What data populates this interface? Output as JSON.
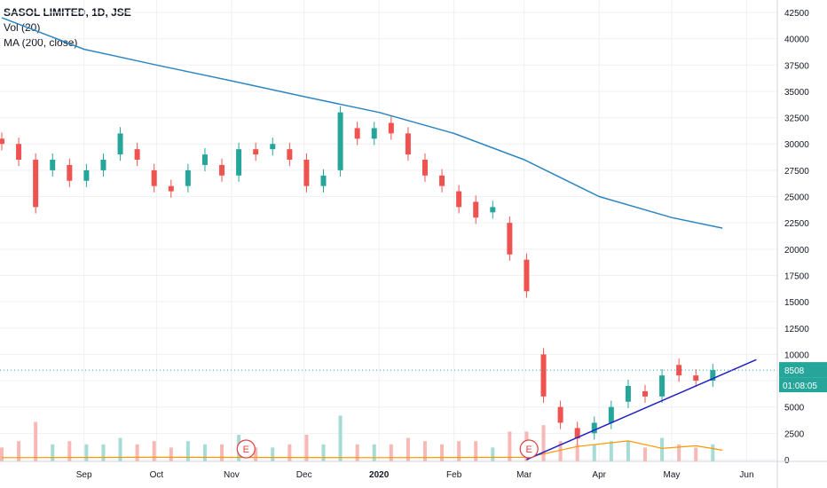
{
  "header": {
    "symbol_line": "SASOL LIMITED, 1D, JSE",
    "vol_label": "Vol (20)",
    "ma_label": "MA (200, close)"
  },
  "price_axis": {
    "ticks": [
      "42500",
      "40000",
      "37500",
      "35000",
      "32500",
      "30000",
      "27500",
      "25000",
      "22500",
      "20000",
      "17500",
      "15000",
      "12500",
      "10000",
      "7500",
      "5000",
      "2500",
      "0"
    ],
    "last_price_label": "8508",
    "countdown_label": "01:08:05"
  },
  "time_axis": {
    "labels": [
      "Sep",
      "Oct",
      "Nov",
      "Dec",
      "2020",
      "Feb",
      "Mar",
      "Apr",
      "May",
      "Jun"
    ]
  },
  "event_markers": [
    {
      "date": "2019-11",
      "label": "E"
    },
    {
      "date": "2020-03",
      "label": "E"
    }
  ],
  "colors": {
    "up": "#26a69a",
    "down": "#ef5350",
    "up_vol": "#a6dcd6",
    "down_vol": "#f7b8b6",
    "ma200": "#2e86c1",
    "vol_ma": "#ff9800",
    "trendline": "#2020c8",
    "last_price_line": "#26a69a",
    "grid": "#eef0f3",
    "text": "#131722",
    "event": "#e04040"
  },
  "chart_data": {
    "type": "candlestick",
    "title": "SASOL LIMITED, 1D, JSE",
    "y_range": [
      0,
      42500
    ],
    "x_range": [
      "2019-07-29",
      "2020-06-10"
    ],
    "last_price": 8508,
    "candles": [
      {
        "d": "2019-07-29",
        "o": 30500,
        "c": 30000
      },
      {
        "d": "2019-08-05",
        "o": 30000,
        "c": 28500
      },
      {
        "d": "2019-08-12",
        "o": 28500,
        "c": 24000
      },
      {
        "d": "2019-08-19",
        "o": 27500,
        "c": 28500
      },
      {
        "d": "2019-08-26",
        "o": 28000,
        "c": 26500
      },
      {
        "d": "2019-09-02",
        "o": 26500,
        "c": 27500
      },
      {
        "d": "2019-09-09",
        "o": 27500,
        "c": 28500
      },
      {
        "d": "2019-09-16",
        "o": 29000,
        "c": 31000
      },
      {
        "d": "2019-09-23",
        "o": 29500,
        "c": 28500
      },
      {
        "d": "2019-09-30",
        "o": 27500,
        "c": 26000
      },
      {
        "d": "2019-10-07",
        "o": 26000,
        "c": 25500
      },
      {
        "d": "2019-10-14",
        "o": 26000,
        "c": 27500
      },
      {
        "d": "2019-10-21",
        "o": 28000,
        "c": 29000
      },
      {
        "d": "2019-10-28",
        "o": 28000,
        "c": 27000
      },
      {
        "d": "2019-11-04",
        "o": 27000,
        "c": 29500
      },
      {
        "d": "2019-11-11",
        "o": 29500,
        "c": 29000
      },
      {
        "d": "2019-11-18",
        "o": 29500,
        "c": 30000
      },
      {
        "d": "2019-11-25",
        "o": 29500,
        "c": 28500
      },
      {
        "d": "2019-12-02",
        "o": 28500,
        "c": 26000
      },
      {
        "d": "2019-12-09",
        "o": 26000,
        "c": 27000
      },
      {
        "d": "2019-12-16",
        "o": 27500,
        "c": 33000
      },
      {
        "d": "2019-12-23",
        "o": 31500,
        "c": 30500
      },
      {
        "d": "2019-12-30",
        "o": 30500,
        "c": 31500
      },
      {
        "d": "2020-01-06",
        "o": 32000,
        "c": 31000
      },
      {
        "d": "2020-01-13",
        "o": 31000,
        "c": 29000
      },
      {
        "d": "2020-01-20",
        "o": 28500,
        "c": 27000
      },
      {
        "d": "2020-01-27",
        "o": 27000,
        "c": 26000
      },
      {
        "d": "2020-02-03",
        "o": 25500,
        "c": 24000
      },
      {
        "d": "2020-02-10",
        "o": 24500,
        "c": 23000
      },
      {
        "d": "2020-02-17",
        "o": 23500,
        "c": 24000
      },
      {
        "d": "2020-02-24",
        "o": 22500,
        "c": 19500
      },
      {
        "d": "2020-03-02",
        "o": 19000,
        "c": 16000
      },
      {
        "d": "2020-03-09",
        "o": 10000,
        "c": 6000
      },
      {
        "d": "2020-03-16",
        "o": 5000,
        "c": 3500
      },
      {
        "d": "2020-03-23",
        "o": 3000,
        "c": 2000
      },
      {
        "d": "2020-03-30",
        "o": 2500,
        "c": 3500
      },
      {
        "d": "2020-04-06",
        "o": 3500,
        "c": 5000
      },
      {
        "d": "2020-04-13",
        "o": 5500,
        "c": 7000
      },
      {
        "d": "2020-04-20",
        "o": 6500,
        "c": 6000
      },
      {
        "d": "2020-04-27",
        "o": 6000,
        "c": 8000
      },
      {
        "d": "2020-05-04",
        "o": 9000,
        "c": 8000
      },
      {
        "d": "2020-05-11",
        "o": 8000,
        "c": 7500
      },
      {
        "d": "2020-05-18",
        "o": 7500,
        "c": 8508
      }
    ],
    "ma200": [
      {
        "d": "2019-07-29",
        "v": 42000
      },
      {
        "d": "2019-09-01",
        "v": 39000
      },
      {
        "d": "2019-10-01",
        "v": 37500
      },
      {
        "d": "2019-11-01",
        "v": 36000
      },
      {
        "d": "2019-12-01",
        "v": 34500
      },
      {
        "d": "2020-01-01",
        "v": 33000
      },
      {
        "d": "2020-02-01",
        "v": 31000
      },
      {
        "d": "2020-03-01",
        "v": 28500
      },
      {
        "d": "2020-04-01",
        "v": 25000
      },
      {
        "d": "2020-05-01",
        "v": 23000
      },
      {
        "d": "2020-05-22",
        "v": 22000
      }
    ],
    "volume_ma": [
      {
        "d": "2019-07-29",
        "v": 1000
      },
      {
        "d": "2019-10-01",
        "v": 1100
      },
      {
        "d": "2020-01-01",
        "v": 1000
      },
      {
        "d": "2020-03-01",
        "v": 1100
      },
      {
        "d": "2020-03-09",
        "v": 2000
      },
      {
        "d": "2020-03-23",
        "v": 4000
      },
      {
        "d": "2020-04-13",
        "v": 5500
      },
      {
        "d": "2020-04-27",
        "v": 3500
      },
      {
        "d": "2020-05-11",
        "v": 4200
      },
      {
        "d": "2020-05-22",
        "v": 3000
      }
    ],
    "trendline": [
      {
        "d": "2020-03-02",
        "v": 0
      },
      {
        "d": "2020-06-05",
        "v": 9500
      }
    ]
  }
}
